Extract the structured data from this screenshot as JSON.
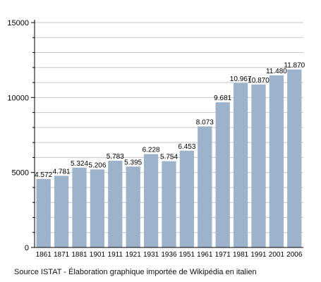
{
  "chart_data": {
    "type": "bar",
    "categories": [
      "1861",
      "1871",
      "1881",
      "1901",
      "1911",
      "1921",
      "1931",
      "1936",
      "1951",
      "1961",
      "1971",
      "1981",
      "1991",
      "2001",
      "2006"
    ],
    "values": [
      4572,
      4781,
      5324,
      5206,
      5783,
      5395,
      6228,
      5754,
      6453,
      8073,
      9681,
      10967,
      10870,
      11480,
      11870
    ],
    "data_labels": [
      "4.572",
      "4.781",
      "5.324",
      "5.206",
      "5.783",
      "5.395",
      "6.228",
      "5.754",
      "6.453",
      "8.073",
      "9.681",
      "10.967",
      "10.870",
      "11.480",
      "11.870"
    ],
    "y_ticks": [
      0,
      5000,
      10000,
      15000
    ],
    "ylim": [
      0,
      15000
    ],
    "title": "",
    "xlabel": "",
    "ylabel": "",
    "grid": true,
    "legend": "none",
    "bar_color": "#9db3cb",
    "grid_color": "#c8c8c8"
  },
  "source_text": "Source ISTAT - Élaboration graphique importée de Wikipédia en italien"
}
